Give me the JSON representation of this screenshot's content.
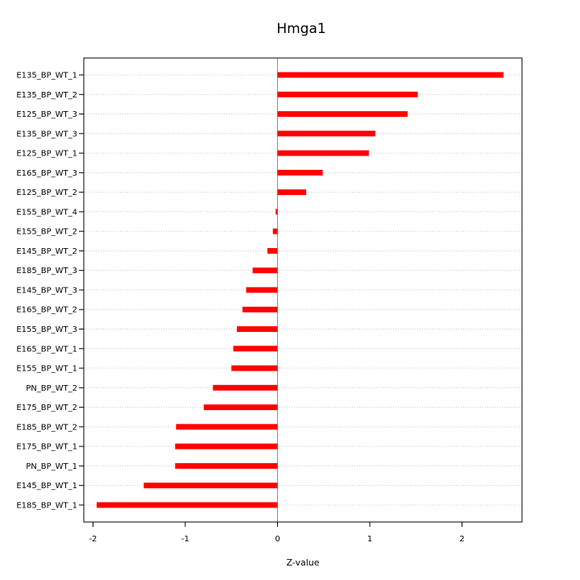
{
  "chart_data": {
    "type": "bar",
    "orientation": "horizontal",
    "title": "Hmga1",
    "xlabel": "Z-value",
    "ylabel": "",
    "xlim": [
      -2.1,
      2.65
    ],
    "xticks": [
      -2,
      -1,
      0,
      1,
      2
    ],
    "xtick_labels": [
      "-2",
      "-1",
      "0",
      "1",
      "2"
    ],
    "zero_line_color": "#33cc33",
    "bar_color": "#ff0000",
    "grid": "horizontal dotted",
    "categories": [
      "E135_BP_WT_1",
      "E135_BP_WT_2",
      "E125_BP_WT_3",
      "E135_BP_WT_3",
      "E125_BP_WT_1",
      "E165_BP_WT_3",
      "E125_BP_WT_2",
      "E155_BP_WT_4",
      "E155_BP_WT_2",
      "E145_BP_WT_2",
      "E185_BP_WT_3",
      "E145_BP_WT_3",
      "E165_BP_WT_2",
      "E155_BP_WT_3",
      "E165_BP_WT_1",
      "E155_BP_WT_1",
      "PN_BP_WT_2",
      "E175_BP_WT_2",
      "E185_BP_WT_2",
      "E175_BP_WT_1",
      "PN_BP_WT_1",
      "E145_BP_WT_1",
      "E185_BP_WT_1"
    ],
    "values": [
      2.45,
      1.52,
      1.41,
      1.06,
      0.99,
      0.49,
      0.31,
      -0.02,
      -0.05,
      -0.11,
      -0.27,
      -0.34,
      -0.38,
      -0.44,
      -0.48,
      -0.5,
      -0.7,
      -0.8,
      -1.1,
      -1.11,
      -1.11,
      -1.45,
      -1.96
    ]
  }
}
